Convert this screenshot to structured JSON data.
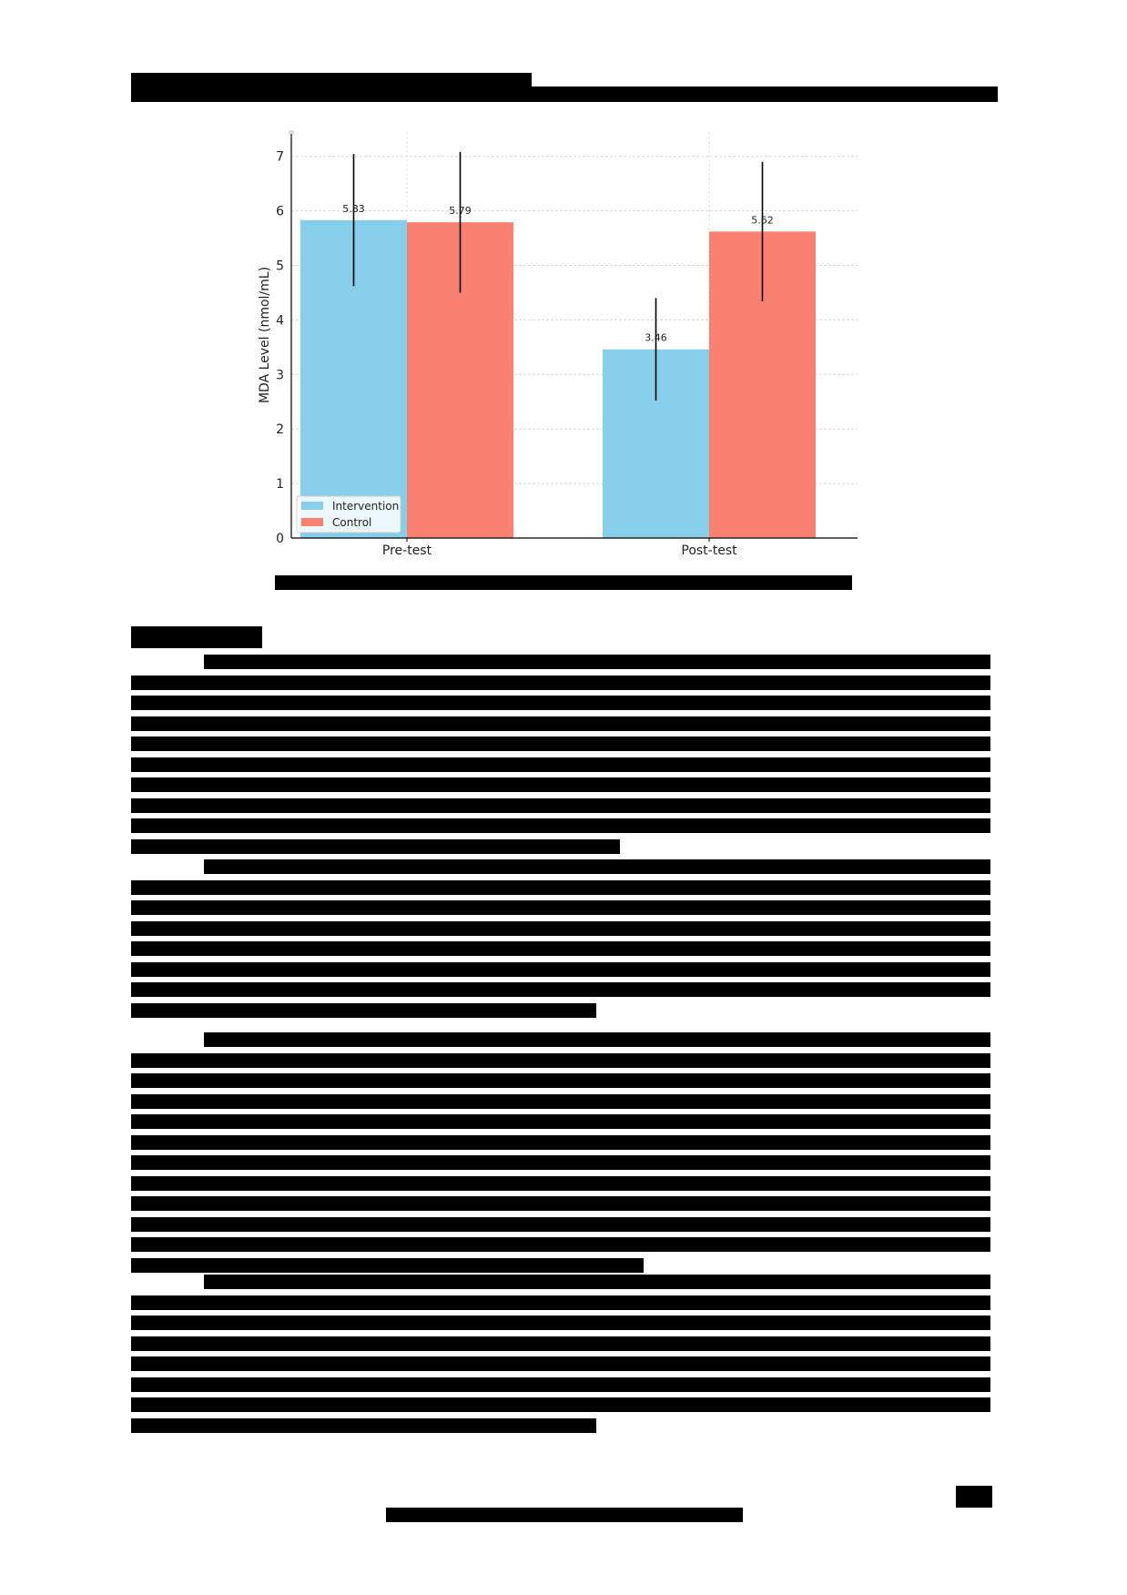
{
  "page": {
    "header_redacted": true,
    "caption_redacted": true,
    "body_redacted": true,
    "footer_redacted": true
  },
  "chart_data": {
    "type": "bar",
    "title": "",
    "xlabel": "",
    "ylabel": "MDA Level (nmol/mL)",
    "categories": [
      "Pre-test",
      "Post-test"
    ],
    "series": [
      {
        "name": "Intervention",
        "color": "#87CEEB",
        "values": [
          5.83,
          3.46
        ],
        "error": [
          1.21,
          0.94
        ]
      },
      {
        "name": "Control",
        "color": "#FA8072",
        "values": [
          5.79,
          5.62
        ],
        "error": [
          1.29,
          1.28
        ]
      }
    ],
    "data_labels": [
      "5.83",
      "5.79",
      "3.46",
      "5.62"
    ],
    "ylim": [
      0,
      7.3
    ],
    "yticks": [
      0,
      1,
      2,
      3,
      4,
      5,
      6,
      7
    ],
    "grid": true,
    "legend_position": "lower left"
  }
}
